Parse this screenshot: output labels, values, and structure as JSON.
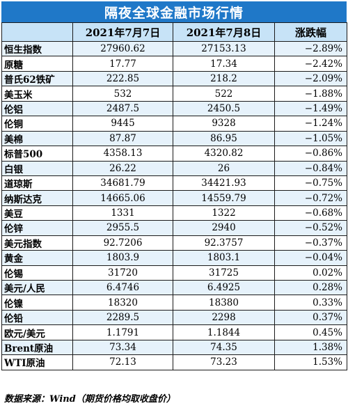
{
  "title": "隔夜全球金融市场行情",
  "columns": [
    "",
    "2021年7月7日",
    "2021年7月8日",
    "涨跌幅"
  ],
  "rows": [
    {
      "name": "恒生指数",
      "d1": "27960.62",
      "d2": "27153.13",
      "chg": "−2.89%"
    },
    {
      "name": "原糖",
      "d1": "17.77",
      "d2": "17.34",
      "chg": "−2.42%"
    },
    {
      "name": "普氏62铁矿",
      "d1": "222.85",
      "d2": "218.2",
      "chg": "−2.09%"
    },
    {
      "name": "美玉米",
      "d1": "532",
      "d2": "522",
      "chg": "−1.88%"
    },
    {
      "name": "伦铝",
      "d1": "2487.5",
      "d2": "2450.5",
      "chg": "−1.49%"
    },
    {
      "name": "伦铜",
      "d1": "9445",
      "d2": "9328",
      "chg": "−1.24%"
    },
    {
      "name": "美棉",
      "d1": "87.87",
      "d2": "86.95",
      "chg": "−1.05%"
    },
    {
      "name": "标普500",
      "d1": "4358.13",
      "d2": "4320.82",
      "chg": "−0.86%"
    },
    {
      "name": "白银",
      "d1": "26.22",
      "d2": "26",
      "chg": "−0.84%"
    },
    {
      "name": "道琼斯",
      "d1": "34681.79",
      "d2": "34421.93",
      "chg": "−0.75%"
    },
    {
      "name": "纳斯达克",
      "d1": "14665.06",
      "d2": "14559.79",
      "chg": "−0.72%"
    },
    {
      "name": "美豆",
      "d1": "1331",
      "d2": "1322",
      "chg": "−0.68%"
    },
    {
      "name": "伦锌",
      "d1": "2955.5",
      "d2": "2940",
      "chg": "−0.52%"
    },
    {
      "name": "美元指数",
      "d1": "92.7206",
      "d2": "92.3757",
      "chg": "−0.37%"
    },
    {
      "name": "黄金",
      "d1": "1803.9",
      "d2": "1803.1",
      "chg": "−0.04%"
    },
    {
      "name": "伦锡",
      "d1": "31720",
      "d2": "31725",
      "chg": "0.02%"
    },
    {
      "name": "美元/人民",
      "d1": "6.4746",
      "d2": "6.4925",
      "chg": "0.28%"
    },
    {
      "name": "伦镍",
      "d1": "18320",
      "d2": "18380",
      "chg": "0.33%"
    },
    {
      "name": "伦铅",
      "d1": "2289.5",
      "d2": "2298",
      "chg": "0.37%"
    },
    {
      "name": "欧元/美元",
      "d1": "1.1791",
      "d2": "1.1844",
      "chg": "0.45%"
    },
    {
      "name": "Brent原油",
      "d1": "73.34",
      "d2": "74.35",
      "chg": "1.38%"
    },
    {
      "name": "WTI原油",
      "d1": "72.13",
      "d2": "73.23",
      "chg": "1.53%"
    }
  ],
  "source": "数据来源：Wind（期货价格均取收盘价）",
  "colors": {
    "title_bg": "#1f78c8",
    "header_bg": "#c7e3f7",
    "stripe": "#e6f2fb"
  }
}
